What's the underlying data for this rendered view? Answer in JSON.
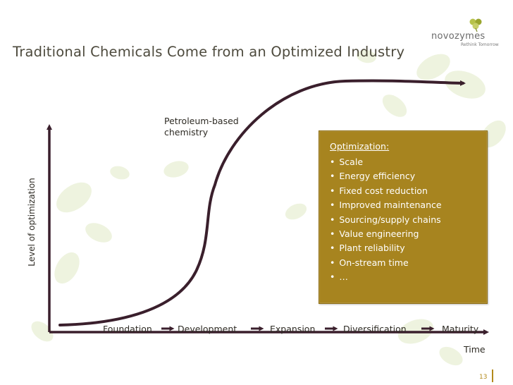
{
  "slide": {
    "title": "Traditional Chemicals Come from an Optimized Industry",
    "page_number": "13"
  },
  "logo": {
    "name": "novozymes",
    "tagline": "Rethink Tomorrow"
  },
  "diagram": {
    "curve_annotation": [
      "Petroleum-based",
      "chemistry"
    ],
    "y_axis_label": "Level of optimization",
    "x_axis_label": "Time",
    "stages": [
      "Foundation",
      "Development",
      "Expansion",
      "Diversification",
      "Maturity"
    ],
    "colors": {
      "curve": "#3a1f2c",
      "stage_arrow": "#3a1f2c",
      "box_fill": "#a7841f",
      "box_text": "#ffffff",
      "title_text": "#4d4a3d",
      "page_accent": "#b38a1c"
    }
  },
  "optimization_box": {
    "title": "Optimization:",
    "items": [
      "Scale",
      "Energy efficiency",
      "Fixed cost reduction",
      "Improved maintenance",
      "Sourcing/supply chains",
      "Value engineering",
      "Plant reliability",
      "On-stream time",
      "…"
    ]
  }
}
